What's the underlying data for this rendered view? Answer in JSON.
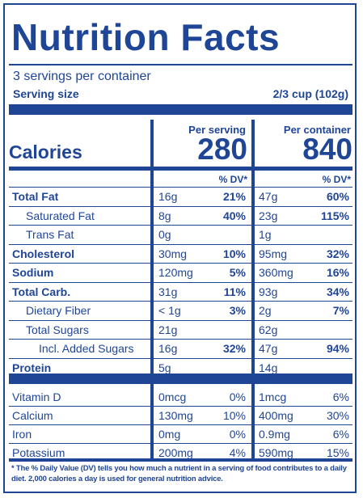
{
  "title": "Nutrition Facts",
  "servings_per_container": "3 servings per container",
  "serving_size_label": "Serving size",
  "serving_size_value": "2/3 cup (102g)",
  "calories_label": "Calories",
  "per_serving_label": "Per serving",
  "per_container_label": "Per container",
  "calories_per_serving": "280",
  "calories_per_container": "840",
  "dv_header": "% DV*",
  "nutrients": [
    {
      "name": "Total Fat",
      "bold": true,
      "indent": 0,
      "s_amt": "16g",
      "s_dv": "21%",
      "c_amt": "47g",
      "c_dv": "60%"
    },
    {
      "name": "Saturated Fat",
      "bold": false,
      "indent": 1,
      "s_amt": "8g",
      "s_dv": "40%",
      "c_amt": "23g",
      "c_dv": "115%"
    },
    {
      "name": "Trans Fat",
      "bold": false,
      "indent": 1,
      "s_amt": "0g",
      "s_dv": "",
      "c_amt": "1g",
      "c_dv": ""
    },
    {
      "name": "Cholesterol",
      "bold": true,
      "indent": 0,
      "s_amt": "30mg",
      "s_dv": "10%",
      "c_amt": "95mg",
      "c_dv": "32%"
    },
    {
      "name": "Sodium",
      "bold": true,
      "indent": 0,
      "s_amt": "120mg",
      "s_dv": "5%",
      "c_amt": "360mg",
      "c_dv": "16%"
    },
    {
      "name": "Total Carb.",
      "bold": true,
      "indent": 0,
      "s_amt": "31g",
      "s_dv": "11%",
      "c_amt": "93g",
      "c_dv": "34%"
    },
    {
      "name": "Dietary Fiber",
      "bold": false,
      "indent": 1,
      "s_amt": "< 1g",
      "s_dv": "3%",
      "c_amt": "2g",
      "c_dv": "7%"
    },
    {
      "name": "Total Sugars",
      "bold": false,
      "indent": 1,
      "s_amt": "21g",
      "s_dv": "",
      "c_amt": "62g",
      "c_dv": ""
    },
    {
      "name": "Incl. Added Sugars",
      "bold": false,
      "indent": 2,
      "s_amt": "16g",
      "s_dv": "32%",
      "c_amt": "47g",
      "c_dv": "94%"
    },
    {
      "name": "Protein",
      "bold": true,
      "indent": 0,
      "s_amt": "5g",
      "s_dv": "",
      "c_amt": "14g",
      "c_dv": ""
    }
  ],
  "vitamins": [
    {
      "name": "Vitamin D",
      "s_amt": "0mcg",
      "s_dv": "0%",
      "c_amt": "1mcg",
      "c_dv": "6%"
    },
    {
      "name": "Calcium",
      "s_amt": "130mg",
      "s_dv": "10%",
      "c_amt": "400mg",
      "c_dv": "30%"
    },
    {
      "name": "Iron",
      "s_amt": "0mg",
      "s_dv": "0%",
      "c_amt": "0.9mg",
      "c_dv": "6%"
    },
    {
      "name": "Potassium",
      "s_amt": "200mg",
      "s_dv": "4%",
      "c_amt": "590mg",
      "c_dv": "15%"
    }
  ],
  "footnote": "* The % Daily Value (DV) tells you how much a nutrient in a serving of food contributes to a daily diet. 2,000 calories a day is used for general nutrition advice.",
  "colors": {
    "label": "#1f4597",
    "background": "#ffffff"
  }
}
